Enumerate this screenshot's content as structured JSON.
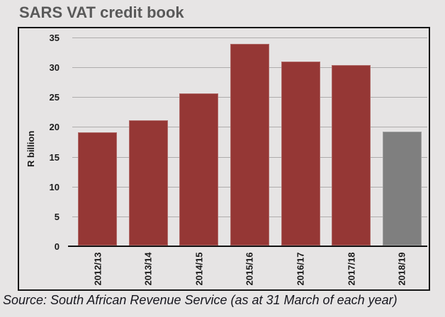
{
  "title": "SARS VAT credit book",
  "source_note": "Source: South African Revenue Service (as at 31 March of each year)",
  "colors": {
    "background": "#e7e5e5",
    "bar_default": "#953735",
    "bar_final": "#7f7f7f",
    "gridline": "#aeacac",
    "axis_line": "#111111",
    "tick_text": "#1a1a1a",
    "title_text": "#595959"
  },
  "chart_data": {
    "type": "bar",
    "title": "SARS VAT credit book",
    "xlabel": "",
    "ylabel": "R billion",
    "categories": [
      "2012/13",
      "2013/14",
      "2014/15",
      "2015/16",
      "2016/17",
      "2017/18",
      "2018/19"
    ],
    "values": [
      19.0,
      21.0,
      25.5,
      33.8,
      30.9,
      30.3,
      19.1
    ],
    "bar_colors": [
      "#953735",
      "#953735",
      "#953735",
      "#953735",
      "#953735",
      "#953735",
      "#7f7f7f"
    ],
    "ylim": [
      0,
      35
    ],
    "yticks": [
      0,
      5,
      10,
      15,
      20,
      25,
      30,
      35
    ],
    "grid": true,
    "legend": false,
    "annotation": "Final year (2018/19) shown in gray"
  }
}
